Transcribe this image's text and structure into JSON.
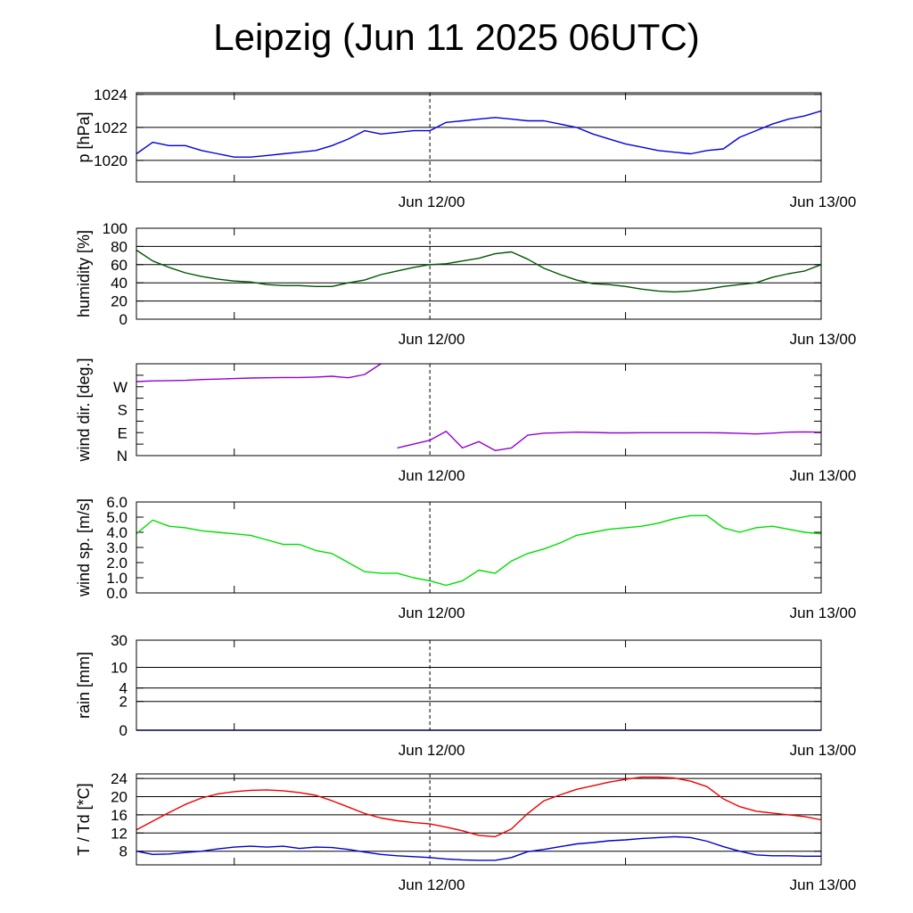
{
  "title": "Leipzig (Jun 11 2025 06UTC)",
  "x_axis": {
    "start": "2025-06-11 06:00",
    "end": "2025-06-13 00:00",
    "marker": "2025-06-12 00:00",
    "tick_labels": [
      "Jun 12/00",
      "Jun 13/00"
    ]
  },
  "colors": {
    "pressure": "#0000dd",
    "humidity": "#005500",
    "wind_direction": "#9400d3",
    "wind_speed": "#00dd00",
    "temperature": "#ee0000",
    "dewpoint": "#0000cc"
  },
  "chart_data": [
    {
      "type": "line",
      "ylabel": "p [hPa]",
      "ylim": [
        1018.7,
        1024.1
      ],
      "yticks": [
        "1020",
        "1022",
        "1024"
      ],
      "grid": true,
      "series": [
        {
          "x": [
            "2025-06-11 06:00",
            "2025-06-11 07:00",
            "2025-06-11 08:00",
            "2025-06-11 09:00",
            "2025-06-11 10:00",
            "2025-06-11 11:00",
            "2025-06-11 12:00",
            "2025-06-11 13:00",
            "2025-06-11 14:00",
            "2025-06-11 15:00",
            "2025-06-11 16:00",
            "2025-06-11 17:00",
            "2025-06-11 18:00",
            "2025-06-11 19:00",
            "2025-06-11 20:00",
            "2025-06-11 21:00",
            "2025-06-11 22:00",
            "2025-06-11 23:00",
            "2025-06-12 00:00",
            "2025-06-12 01:00",
            "2025-06-12 02:00",
            "2025-06-12 03:00",
            "2025-06-12 04:00",
            "2025-06-12 05:00",
            "2025-06-12 06:00",
            "2025-06-12 07:00",
            "2025-06-12 08:00",
            "2025-06-12 09:00",
            "2025-06-12 10:00",
            "2025-06-12 11:00",
            "2025-06-12 12:00",
            "2025-06-12 13:00",
            "2025-06-12 14:00",
            "2025-06-12 15:00",
            "2025-06-12 16:00",
            "2025-06-12 17:00",
            "2025-06-12 18:00",
            "2025-06-12 19:00",
            "2025-06-12 20:00",
            "2025-06-12 21:00",
            "2025-06-12 22:00",
            "2025-06-12 23:00",
            "2025-06-13 00:00"
          ],
          "values": [
            1020.4,
            1021.1,
            1020.9,
            1020.9,
            1020.6,
            1020.4,
            1020.2,
            1020.2,
            1020.3,
            1020.4,
            1020.5,
            1020.6,
            1020.9,
            1021.3,
            1021.8,
            1021.6,
            1021.7,
            1021.8,
            1021.8,
            1022.3,
            1022.4,
            1022.5,
            1022.6,
            1022.5,
            1022.4,
            1022.4,
            1022.2,
            1022.0,
            1021.6,
            1021.3,
            1021.0,
            1020.8,
            1020.6,
            1020.5,
            1020.4,
            1020.6,
            1020.7,
            1021.4,
            1021.8,
            1022.2,
            1022.5,
            1022.7,
            1023.0
          ]
        }
      ]
    },
    {
      "type": "line",
      "ylabel": "humidity [%]",
      "ylim": [
        0,
        100
      ],
      "yticks": [
        "0",
        "20",
        "40",
        "60",
        "80",
        "100"
      ],
      "grid": true,
      "series": [
        {
          "x": [
            "2025-06-11 06:00",
            "2025-06-11 07:00",
            "2025-06-11 08:00",
            "2025-06-11 09:00",
            "2025-06-11 10:00",
            "2025-06-11 11:00",
            "2025-06-11 12:00",
            "2025-06-11 13:00",
            "2025-06-11 14:00",
            "2025-06-11 15:00",
            "2025-06-11 16:00",
            "2025-06-11 17:00",
            "2025-06-11 18:00",
            "2025-06-11 19:00",
            "2025-06-11 20:00",
            "2025-06-11 21:00",
            "2025-06-11 22:00",
            "2025-06-11 23:00",
            "2025-06-12 00:00",
            "2025-06-12 01:00",
            "2025-06-12 02:00",
            "2025-06-12 03:00",
            "2025-06-12 04:00",
            "2025-06-12 05:00",
            "2025-06-12 06:00",
            "2025-06-12 07:00",
            "2025-06-12 08:00",
            "2025-06-12 09:00",
            "2025-06-12 10:00",
            "2025-06-12 11:00",
            "2025-06-12 12:00",
            "2025-06-12 13:00",
            "2025-06-12 14:00",
            "2025-06-12 15:00",
            "2025-06-12 16:00",
            "2025-06-12 17:00",
            "2025-06-12 18:00",
            "2025-06-12 19:00",
            "2025-06-12 20:00",
            "2025-06-12 21:00",
            "2025-06-12 22:00",
            "2025-06-12 23:00",
            "2025-06-13 00:00"
          ],
          "values": [
            76,
            64,
            57,
            51,
            47,
            44,
            42,
            41,
            38,
            37,
            37,
            36,
            36,
            40,
            43,
            49,
            53,
            57,
            60,
            61,
            64,
            67,
            72,
            74,
            66,
            56,
            49,
            43,
            39,
            38,
            36,
            33,
            31,
            30,
            31,
            33,
            36,
            38,
            40,
            46,
            50,
            53,
            60
          ]
        }
      ]
    },
    {
      "type": "line",
      "ylabel": "wind dir. [deg.]",
      "ylim": [
        0,
        360
      ],
      "yticks": [
        "N",
        "E",
        "S",
        "W"
      ],
      "grid": false,
      "series": [
        {
          "x": [
            "2025-06-11 06:00",
            "2025-06-11 07:00",
            "2025-06-11 08:00",
            "2025-06-11 09:00",
            "2025-06-11 10:00",
            "2025-06-11 11:00",
            "2025-06-11 12:00",
            "2025-06-11 13:00",
            "2025-06-11 14:00",
            "2025-06-11 15:00",
            "2025-06-11 16:00",
            "2025-06-11 17:00",
            "2025-06-11 18:00",
            "2025-06-11 19:00",
            "2025-06-11 20:00",
            "2025-06-11 21:00",
            "2025-06-11 22:00",
            "2025-06-11 23:00",
            "2025-06-12 00:00",
            "2025-06-12 01:00",
            "2025-06-12 02:00",
            "2025-06-12 03:00",
            "2025-06-12 04:00",
            "2025-06-12 05:00",
            "2025-06-12 06:00",
            "2025-06-12 07:00",
            "2025-06-12 08:00",
            "2025-06-12 09:00",
            "2025-06-12 10:00",
            "2025-06-12 11:00",
            "2025-06-12 12:00",
            "2025-06-12 13:00",
            "2025-06-12 14:00",
            "2025-06-12 15:00",
            "2025-06-12 16:00",
            "2025-06-12 17:00",
            "2025-06-12 18:00",
            "2025-06-12 19:00",
            "2025-06-12 20:00",
            "2025-06-12 21:00",
            "2025-06-12 22:00",
            "2025-06-12 23:00",
            "2025-06-13 00:00"
          ],
          "values": [
            290,
            293,
            294,
            295,
            298,
            300,
            302,
            304,
            305,
            306,
            306,
            308,
            311,
            305,
            318,
            360,
            30,
            45,
            60,
            95,
            30,
            55,
            20,
            30,
            80,
            88,
            90,
            92,
            91,
            89,
            89,
            90,
            90,
            90,
            90,
            90,
            89,
            87,
            85,
            88,
            92,
            93,
            92
          ]
        }
      ]
    },
    {
      "type": "line",
      "ylabel": "wind sp. [m/s]",
      "ylim": [
        0,
        6
      ],
      "yticks": [
        "0.0",
        "1.0",
        "2.0",
        "3.0",
        "4.0",
        "5.0",
        "6.0"
      ],
      "grid": false,
      "series": [
        {
          "x": [
            "2025-06-11 06:00",
            "2025-06-11 07:00",
            "2025-06-11 08:00",
            "2025-06-11 09:00",
            "2025-06-11 10:00",
            "2025-06-11 11:00",
            "2025-06-11 12:00",
            "2025-06-11 13:00",
            "2025-06-11 14:00",
            "2025-06-11 15:00",
            "2025-06-11 16:00",
            "2025-06-11 17:00",
            "2025-06-11 18:00",
            "2025-06-11 19:00",
            "2025-06-11 20:00",
            "2025-06-11 21:00",
            "2025-06-11 22:00",
            "2025-06-11 23:00",
            "2025-06-12 00:00",
            "2025-06-12 01:00",
            "2025-06-12 02:00",
            "2025-06-12 03:00",
            "2025-06-12 04:00",
            "2025-06-12 05:00",
            "2025-06-12 06:00",
            "2025-06-12 07:00",
            "2025-06-12 08:00",
            "2025-06-12 09:00",
            "2025-06-12 10:00",
            "2025-06-12 11:00",
            "2025-06-12 12:00",
            "2025-06-12 13:00",
            "2025-06-12 14:00",
            "2025-06-12 15:00",
            "2025-06-12 16:00",
            "2025-06-12 17:00",
            "2025-06-12 18:00",
            "2025-06-12 19:00",
            "2025-06-12 20:00",
            "2025-06-12 21:00",
            "2025-06-12 22:00",
            "2025-06-12 23:00",
            "2025-06-13 00:00"
          ],
          "values": [
            3.9,
            4.8,
            4.4,
            4.3,
            4.1,
            4.0,
            3.9,
            3.8,
            3.5,
            3.2,
            3.2,
            2.8,
            2.6,
            2.0,
            1.4,
            1.3,
            1.3,
            1.0,
            0.8,
            0.5,
            0.8,
            1.5,
            1.3,
            2.1,
            2.6,
            2.9,
            3.3,
            3.8,
            4.0,
            4.2,
            4.3,
            4.4,
            4.6,
            4.9,
            5.1,
            5.1,
            4.3,
            4.0,
            4.3,
            4.4,
            4.2,
            4.0,
            3.9
          ]
        }
      ]
    },
    {
      "type": "line",
      "ylabel": "rain [mm]",
      "ylim": [
        0,
        30
      ],
      "yticks": [
        "0",
        "2",
        "4",
        "10",
        "30"
      ],
      "grid": true,
      "series": [
        {
          "x": [
            "2025-06-11 06:00",
            "2025-06-13 00:00"
          ],
          "values": [
            0,
            0
          ]
        }
      ]
    },
    {
      "type": "line",
      "ylabel": "T / Td [*C]",
      "ylim": [
        5,
        25
      ],
      "yticks": [
        "8",
        "12",
        "16",
        "20",
        "24"
      ],
      "grid": true,
      "series": [
        {
          "x": [
            "2025-06-11 06:00",
            "2025-06-11 07:00",
            "2025-06-11 08:00",
            "2025-06-11 09:00",
            "2025-06-11 10:00",
            "2025-06-11 11:00",
            "2025-06-11 12:00",
            "2025-06-11 13:00",
            "2025-06-11 14:00",
            "2025-06-11 15:00",
            "2025-06-11 16:00",
            "2025-06-11 17:00",
            "2025-06-11 18:00",
            "2025-06-11 19:00",
            "2025-06-11 20:00",
            "2025-06-11 21:00",
            "2025-06-11 22:00",
            "2025-06-11 23:00",
            "2025-06-12 00:00",
            "2025-06-12 01:00",
            "2025-06-12 02:00",
            "2025-06-12 03:00",
            "2025-06-12 04:00",
            "2025-06-12 05:00",
            "2025-06-12 06:00",
            "2025-06-12 07:00",
            "2025-06-12 08:00",
            "2025-06-12 09:00",
            "2025-06-12 10:00",
            "2025-06-12 11:00",
            "2025-06-12 12:00",
            "2025-06-12 13:00",
            "2025-06-12 14:00",
            "2025-06-12 15:00",
            "2025-06-12 16:00",
            "2025-06-12 17:00",
            "2025-06-12 18:00",
            "2025-06-12 19:00",
            "2025-06-12 20:00",
            "2025-06-12 21:00",
            "2025-06-12 22:00",
            "2025-06-12 23:00",
            "2025-06-13 00:00"
          ],
          "values": [
            12.7,
            14.6,
            16.5,
            18.3,
            19.7,
            20.6,
            21.1,
            21.4,
            21.5,
            21.3,
            20.9,
            20.3,
            19.1,
            17.7,
            16.3,
            15.3,
            14.7,
            14.3,
            14.0,
            13.3,
            12.5,
            11.5,
            11.2,
            12.9,
            16.3,
            19.1,
            20.4,
            21.6,
            22.4,
            23.2,
            23.8,
            24.3,
            24.3,
            24.1,
            23.4,
            22.2,
            19.5,
            17.8,
            16.8,
            16.4,
            16.0,
            15.6,
            14.9
          ]
        },
        {
          "x": [
            "2025-06-11 06:00",
            "2025-06-11 07:00",
            "2025-06-11 08:00",
            "2025-06-11 09:00",
            "2025-06-11 10:00",
            "2025-06-11 11:00",
            "2025-06-11 12:00",
            "2025-06-11 13:00",
            "2025-06-11 14:00",
            "2025-06-11 15:00",
            "2025-06-11 16:00",
            "2025-06-11 17:00",
            "2025-06-11 18:00",
            "2025-06-11 19:00",
            "2025-06-11 20:00",
            "2025-06-11 21:00",
            "2025-06-11 22:00",
            "2025-06-11 23:00",
            "2025-06-12 00:00",
            "2025-06-12 01:00",
            "2025-06-12 02:00",
            "2025-06-12 03:00",
            "2025-06-12 04:00",
            "2025-06-12 05:00",
            "2025-06-12 06:00",
            "2025-06-12 07:00",
            "2025-06-12 08:00",
            "2025-06-12 09:00",
            "2025-06-12 10:00",
            "2025-06-12 11:00",
            "2025-06-12 12:00",
            "2025-06-12 13:00",
            "2025-06-12 14:00",
            "2025-06-12 15:00",
            "2025-06-12 16:00",
            "2025-06-12 17:00",
            "2025-06-12 18:00",
            "2025-06-12 19:00",
            "2025-06-12 20:00",
            "2025-06-12 21:00",
            "2025-06-12 22:00",
            "2025-06-12 23:00",
            "2025-06-13 00:00"
          ],
          "values": [
            8.0,
            7.3,
            7.4,
            7.7,
            8.0,
            8.5,
            8.9,
            9.1,
            8.9,
            9.1,
            8.6,
            8.9,
            8.8,
            8.4,
            7.8,
            7.3,
            7.0,
            6.8,
            6.6,
            6.3,
            6.1,
            6.0,
            6.0,
            6.6,
            7.9,
            8.4,
            9.0,
            9.6,
            9.9,
            10.3,
            10.5,
            10.8,
            11.0,
            11.2,
            11.0,
            10.2,
            9.0,
            8.0,
            7.2,
            7.0,
            7.0,
            6.9,
            6.9
          ]
        }
      ]
    }
  ]
}
